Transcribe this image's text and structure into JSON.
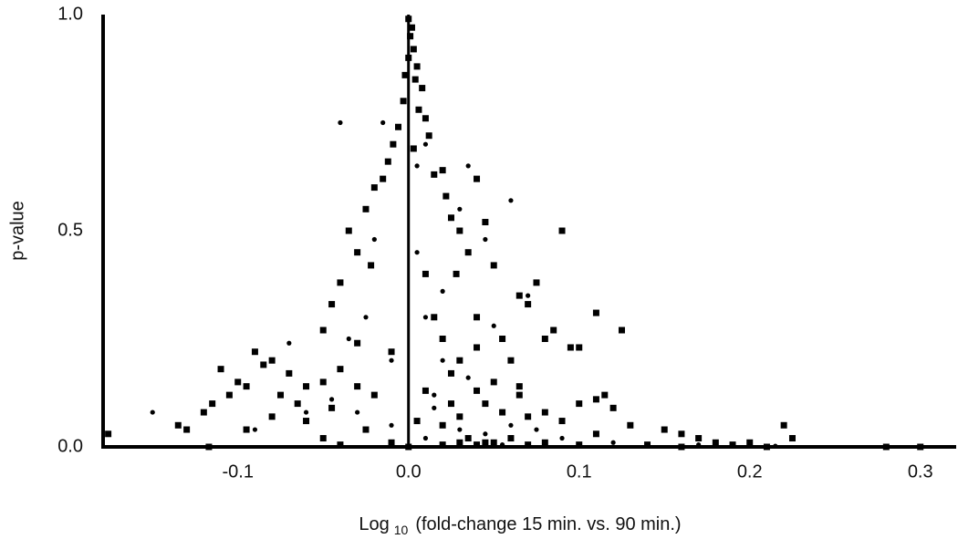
{
  "chart_data": {
    "type": "scatter",
    "xlabel": [
      "Log",
      "10",
      "(fold-change 15 min. vs. 90 min.)"
    ],
    "ylabel": "p-value",
    "xlim": [
      -0.179,
      0.321
    ],
    "ylim": [
      0,
      1
    ],
    "xticks": [
      -0.1,
      {
        "value": 0,
        "label": "0.0"
      },
      0.1,
      0.2,
      0.3
    ],
    "yticks": [
      {
        "value": 0,
        "label": "0.0"
      },
      {
        "value": 0.5,
        "label": "0.5"
      },
      {
        "value": 1,
        "label": "1.0"
      }
    ],
    "reference_line_x": 0,
    "grid": false,
    "series": [
      {
        "marker": "square",
        "color": "#000000",
        "x": [
          0.0,
          0.002,
          0.001,
          0.003,
          0.0,
          0.005,
          -0.002,
          0.004,
          0.008,
          -0.003,
          0.006,
          0.01,
          -0.006,
          0.012,
          -0.009,
          0.003,
          -0.012,
          0.015,
          -0.015,
          0.02,
          -0.02,
          0.022,
          0.04,
          -0.025,
          0.025,
          0.03,
          -0.035,
          0.09,
          -0.03,
          0.035,
          0.045,
          -0.022,
          0.01,
          0.028,
          0.05,
          0.075,
          -0.04,
          0.065,
          0.07,
          -0.045,
          0.015,
          0.04,
          0.085,
          0.11,
          0.125,
          -0.05,
          0.055,
          0.02,
          -0.03,
          0.08,
          0.1,
          0.095,
          0.04,
          0.06,
          0.03,
          -0.01,
          -0.09,
          -0.085,
          -0.08,
          -0.11,
          -0.07,
          -0.04,
          0.025,
          0.05,
          0.065,
          -0.1,
          -0.095,
          -0.05,
          -0.06,
          -0.03,
          0.01,
          0.04,
          0.065,
          -0.105,
          -0.075,
          -0.02,
          0.11,
          0.115,
          0.1,
          0.045,
          -0.115,
          -0.065,
          0.025,
          0.12,
          0.08,
          -0.12,
          -0.045,
          0.055,
          0.07,
          0.03,
          -0.08,
          0.09,
          -0.135,
          -0.13,
          -0.06,
          0.005,
          0.13,
          0.15,
          0.22,
          0.02,
          -0.095,
          -0.025,
          0.16,
          0.11,
          0.225,
          -0.176,
          0.17,
          0.035,
          -0.05,
          0.06,
          0.18,
          0.2,
          0.19,
          0.045,
          0.03,
          0.05,
          0.04,
          0.08,
          0.14,
          -0.01,
          -0.04,
          -0.117,
          0.28,
          0.3,
          0.0,
          0.02,
          0.07,
          0.1,
          0.16,
          0.21
        ],
        "values": [
          0.99,
          0.97,
          0.95,
          0.92,
          0.9,
          0.88,
          0.86,
          0.85,
          0.83,
          0.8,
          0.78,
          0.76,
          0.74,
          0.72,
          0.7,
          0.69,
          0.66,
          0.63,
          0.62,
          0.64,
          0.6,
          0.58,
          0.62,
          0.55,
          0.53,
          0.5,
          0.5,
          0.5,
          0.45,
          0.45,
          0.52,
          0.42,
          0.4,
          0.4,
          0.42,
          0.38,
          0.38,
          0.35,
          0.33,
          0.33,
          0.3,
          0.3,
          0.27,
          0.31,
          0.27,
          0.27,
          0.25,
          0.25,
          0.24,
          0.25,
          0.23,
          0.23,
          0.23,
          0.2,
          0.2,
          0.22,
          0.22,
          0.19,
          0.2,
          0.18,
          0.17,
          0.18,
          0.17,
          0.15,
          0.14,
          0.15,
          0.14,
          0.15,
          0.14,
          0.14,
          0.13,
          0.13,
          0.12,
          0.12,
          0.12,
          0.12,
          0.11,
          0.12,
          0.1,
          0.1,
          0.1,
          0.1,
          0.1,
          0.09,
          0.08,
          0.08,
          0.09,
          0.08,
          0.07,
          0.07,
          0.07,
          0.06,
          0.05,
          0.04,
          0.06,
          0.06,
          0.05,
          0.04,
          0.05,
          0.05,
          0.04,
          0.04,
          0.03,
          0.03,
          0.02,
          0.03,
          0.02,
          0.02,
          0.02,
          0.02,
          0.01,
          0.01,
          0.005,
          0.01,
          0.01,
          0.01,
          0.005,
          0.01,
          0.005,
          0.01,
          0.005,
          0.0,
          0.0,
          0.0,
          0.0,
          0.005,
          0.005,
          0.005,
          0.0,
          0.0
        ]
      },
      {
        "marker": "circle",
        "color": "#000000",
        "x": [
          -0.15,
          -0.07,
          -0.04,
          -0.015,
          0.01,
          0.005,
          0.03,
          0.035,
          0.06,
          0.045,
          -0.02,
          0.005,
          0.02,
          0.07,
          -0.025,
          0.01,
          0.05,
          -0.035,
          -0.01,
          0.02,
          0.035,
          -0.06,
          -0.045,
          0.015,
          0.03,
          0.045,
          0.06,
          0.075,
          -0.09,
          -0.01,
          0.01,
          0.09,
          0.12,
          0.055,
          0.015,
          -0.03,
          0.17,
          0.215
        ],
        "values": [
          0.08,
          0.24,
          0.75,
          0.75,
          0.7,
          0.65,
          0.55,
          0.65,
          0.57,
          0.48,
          0.48,
          0.45,
          0.36,
          0.35,
          0.3,
          0.3,
          0.28,
          0.25,
          0.2,
          0.2,
          0.16,
          0.08,
          0.11,
          0.09,
          0.04,
          0.03,
          0.05,
          0.04,
          0.04,
          0.05,
          0.02,
          0.02,
          0.01,
          0.005,
          0.12,
          0.08,
          0.005,
          0.002
        ]
      }
    ]
  }
}
